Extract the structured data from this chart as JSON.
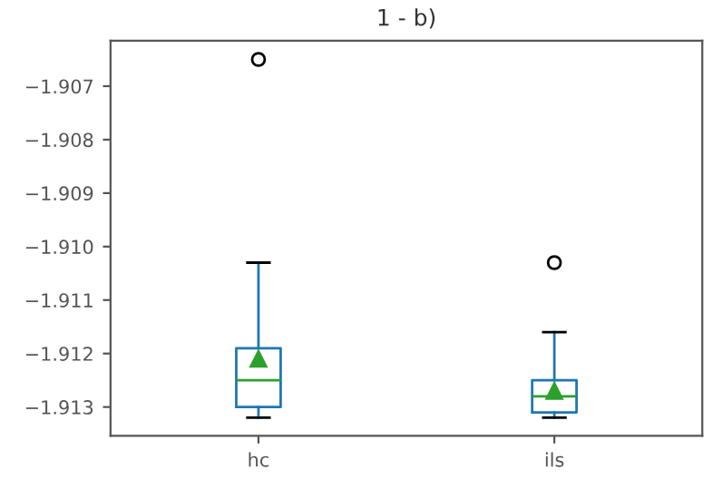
{
  "chart_data": {
    "type": "box",
    "title": "1 - b)",
    "categories": [
      "hc",
      "ils"
    ],
    "boxes": [
      {
        "low": -1.9132,
        "q1": -1.913,
        "median": -1.9125,
        "q3": -1.9119,
        "high": -1.9103,
        "mean": -1.9121,
        "outliers": [
          -1.9065
        ]
      },
      {
        "low": -1.9132,
        "q1": -1.9131,
        "median": -1.9128,
        "q3": -1.9125,
        "high": -1.9116,
        "mean": -1.9127,
        "outliers": [
          -1.9103
        ]
      }
    ],
    "ylim": [
      -1.91354,
      -1.90615
    ],
    "yticks": [
      -1.913,
      -1.912,
      -1.911,
      {
        "value": -1.91,
        "label": "−1.910"
      },
      -1.909,
      -1.908,
      -1.907
    ],
    "grid": false
  }
}
